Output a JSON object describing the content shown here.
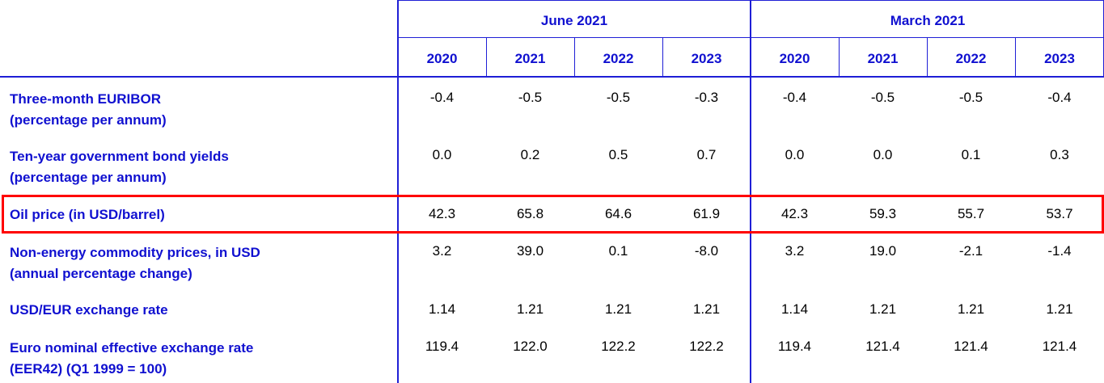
{
  "colors": {
    "grid": "#1f1fd6",
    "header_text": "#1010d0",
    "value_text": "#000000",
    "highlight": "#ff0000"
  },
  "groups": [
    {
      "label": "June 2021",
      "years": [
        "2020",
        "2021",
        "2022",
        "2023"
      ]
    },
    {
      "label": "March 2021",
      "years": [
        "2020",
        "2021",
        "2022",
        "2023"
      ]
    }
  ],
  "rows": [
    {
      "label_lines": [
        "Three-month EURIBOR",
        "(percentage per annum)"
      ],
      "values": [
        "-0.4",
        "-0.5",
        "-0.5",
        "-0.3",
        "-0.4",
        "-0.5",
        "-0.5",
        "-0.4"
      ]
    },
    {
      "label_lines": [
        "Ten-year government bond yields",
        "(percentage per annum)"
      ],
      "values": [
        "0.0",
        "0.2",
        "0.5",
        "0.7",
        "0.0",
        "0.0",
        "0.1",
        "0.3"
      ]
    },
    {
      "label_lines": [
        "Oil price (in USD/barrel)"
      ],
      "values": [
        "42.3",
        "65.8",
        "64.6",
        "61.9",
        "42.3",
        "59.3",
        "55.7",
        "53.7"
      ],
      "highlighted": true
    },
    {
      "label_lines": [
        "Non-energy commodity prices, in USD",
        "(annual percentage change)"
      ],
      "values": [
        "3.2",
        "39.0",
        "0.1",
        "-8.0",
        "3.2",
        "19.0",
        "-2.1",
        "-1.4"
      ]
    },
    {
      "label_lines": [
        "USD/EUR exchange rate"
      ],
      "values": [
        "1.14",
        "1.21",
        "1.21",
        "1.21",
        "1.14",
        "1.21",
        "1.21",
        "1.21"
      ]
    },
    {
      "label_lines": [
        "Euro nominal effective exchange rate",
        "(EER42) (Q1 1999 = 100)"
      ],
      "values": [
        "119.4",
        "122.0",
        "122.2",
        "122.2",
        "119.4",
        "121.4",
        "121.4",
        "121.4"
      ]
    }
  ]
}
